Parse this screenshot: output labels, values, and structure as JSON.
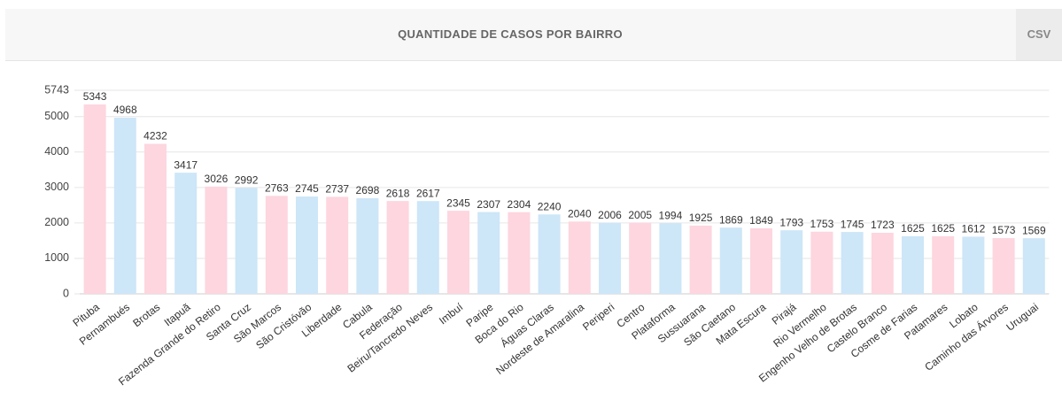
{
  "header": {
    "title": "QUANTIDADE DE CASOS POR BAIRRO",
    "button": "CSV"
  },
  "chart_data": {
    "type": "bar",
    "categories": [
      "Pituba",
      "Pernambués",
      "Brotas",
      "Itapuã",
      "Fazenda Grande do Retiro",
      "Santa Cruz",
      "São Marcos",
      "São Cristóvão",
      "Liberdade",
      "Cabula",
      "Federação",
      "Beiru/Tancredo Neves",
      "Imbuí",
      "Paripe",
      "Boca do Rio",
      "Águas Claras",
      "Nordeste de Amaralina",
      "Periperi",
      "Centro",
      "Plataforma",
      "Sussuarana",
      "São Caetano",
      "Mata Escura",
      "Pirajá",
      "Rio Vermelho",
      "Engenho Velho de Brotas",
      "Castelo Branco",
      "Cosme de Farias",
      "Patamares",
      "Lobato",
      "Caminho das Árvores",
      "Uruguai"
    ],
    "values": [
      5343,
      4968,
      4232,
      3417,
      3026,
      2992,
      2763,
      2745,
      2737,
      2698,
      2618,
      2617,
      2345,
      2307,
      2304,
      2240,
      2040,
      2006,
      2005,
      1994,
      1925,
      1869,
      1849,
      1793,
      1753,
      1745,
      1723,
      1625,
      1625,
      1612,
      1573,
      1569
    ],
    "colors": [
      "#fdd6df",
      "#cde6f8"
    ],
    "ylim": [
      0,
      5743
    ],
    "yticks": [
      0,
      1000,
      2000,
      3000,
      4000,
      5000,
      5743
    ],
    "grid": true
  }
}
